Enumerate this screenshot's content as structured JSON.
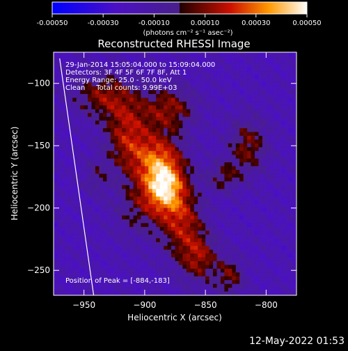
{
  "chart_data": {
    "type": "heatmap",
    "title": "Reconstructed RHESSI Image",
    "xlabel": "Heliocentric X (arcsec)",
    "ylabel": "Heliocentric Y (arcsec)",
    "xlim": [
      -975,
      -775
    ],
    "ylim": [
      -270,
      -75
    ],
    "x_ticks": [
      -950,
      -900,
      -850,
      -800
    ],
    "y_ticks": [
      -100,
      -150,
      -200,
      -250
    ],
    "colorbar": {
      "range": [
        -0.0005,
        0.0005
      ],
      "ticks": [
        "-0.00050",
        "-0.00030",
        "-0.00010",
        "0.00010",
        "0.00030",
        "0.00050"
      ],
      "unit_label": "(photons cm⁻² s⁻¹ asec⁻²)"
    },
    "annotations": [
      "29-Jan-2014 15:05:04.000 to 15:09:04.000",
      "Detectors: 3F 4F 5F 6F 7F 8F, Att 1",
      "Energy Range: 25.0 - 50.0 keV",
      "Clean     Total counts: 9.99E+03"
    ],
    "peak_label": "Position of Peak = [-884,-183]",
    "peak_position": [
      -884,
      -183
    ],
    "limb_line": [
      [
        -970,
        -80
      ],
      [
        -942,
        -270
      ]
    ],
    "grid": false
  },
  "footer": {
    "date": "12-May-2022 01:53"
  }
}
